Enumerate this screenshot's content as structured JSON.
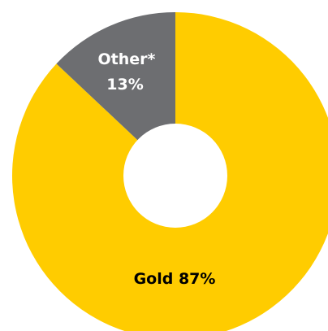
{
  "chart_data": {
    "type": "pie",
    "variant": "donut",
    "title": "",
    "legend": "none",
    "slices": [
      {
        "label": "Gold",
        "display": "Gold 87%",
        "value": 87,
        "color": "#ffcc00",
        "text_color": "#000000"
      },
      {
        "label": "Other*",
        "display_lines": [
          "Other*",
          "13%"
        ],
        "value": 13,
        "color": "#6d6e71",
        "text_color": "#ffffff"
      }
    ]
  }
}
